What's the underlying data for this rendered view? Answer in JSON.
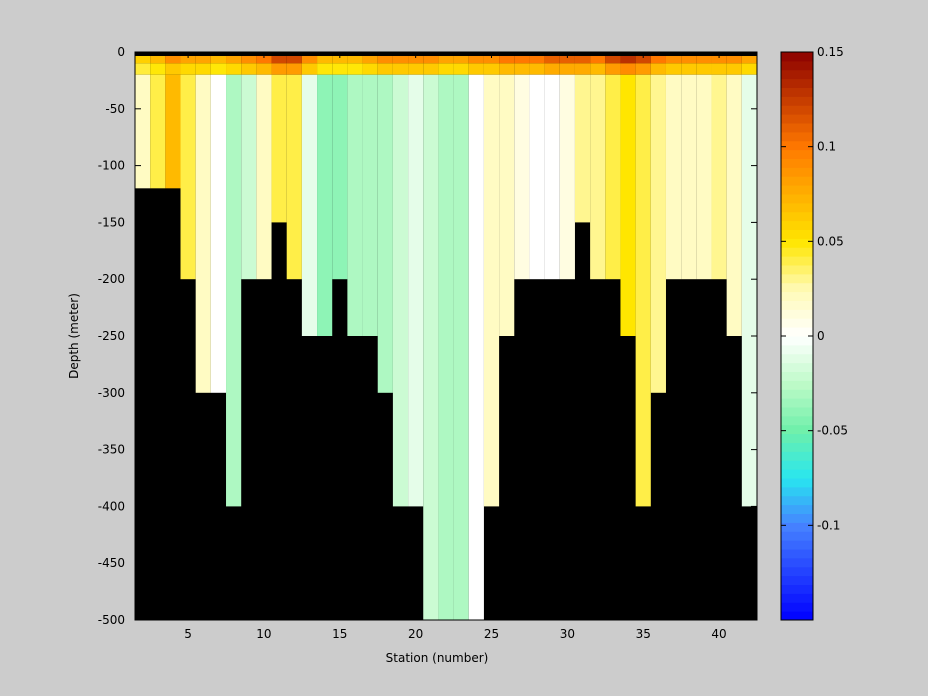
{
  "chart_data": {
    "type": "heatmap",
    "title": "",
    "xlabel": "Station (number)",
    "ylabel": "Depth (meter)",
    "xlim": [
      1.5,
      42.5
    ],
    "ylim": [
      -500,
      0
    ],
    "xticks": [
      5,
      10,
      15,
      20,
      25,
      30,
      35,
      40
    ],
    "yticks": [
      0,
      -50,
      -100,
      -150,
      -200,
      -250,
      -300,
      -350,
      -400,
      -450,
      -500
    ],
    "colorbar": {
      "clim": [
        -0.15,
        0.15
      ],
      "ticks": [
        0.15,
        0.1,
        0.05,
        0,
        -0.05,
        -0.1
      ],
      "tick_labels": [
        "0.15",
        "0.1",
        "0.05",
        "0",
        "-0.05",
        "-0.1"
      ],
      "colormap": "custom-blue-cyan-green-white-yellow-orange-red"
    },
    "stations": [
      2,
      3,
      4,
      5,
      6,
      7,
      8,
      9,
      10,
      11,
      12,
      13,
      14,
      15,
      16,
      17,
      18,
      19,
      20,
      21,
      22,
      23,
      24,
      25,
      26,
      27,
      28,
      29,
      30,
      31,
      32,
      33,
      34,
      35,
      36,
      37,
      38,
      39,
      40,
      41,
      42
    ],
    "bottom_depth": [
      -120,
      -120,
      -120,
      -200,
      -300,
      -300,
      -400,
      -200,
      -200,
      -150,
      -200,
      -250,
      -250,
      -200,
      -250,
      -250,
      -300,
      -400,
      -400,
      -500,
      -500,
      -500,
      -500,
      -400,
      -250,
      -200,
      -200,
      -200,
      -200,
      -150,
      -200,
      -200,
      -250,
      -400,
      -300,
      -200,
      -200,
      -200,
      -200,
      -250,
      -400
    ],
    "surface_layer": {
      "depth_range": [
        0,
        -10
      ],
      "values": [
        0.06,
        0.07,
        0.09,
        0.08,
        0.08,
        0.07,
        0.08,
        0.09,
        0.1,
        0.12,
        0.12,
        0.09,
        0.07,
        0.07,
        0.07,
        0.08,
        0.09,
        0.09,
        0.09,
        0.09,
        0.08,
        0.08,
        0.09,
        0.09,
        0.1,
        0.1,
        0.1,
        0.11,
        0.11,
        0.11,
        0.1,
        0.12,
        0.13,
        0.12,
        0.1,
        0.09,
        0.09,
        0.09,
        0.09,
        0.09,
        0.08
      ]
    },
    "interior_values": [
      0.02,
      0.04,
      0.07,
      0.04,
      0.02,
      0.0,
      -0.03,
      -0.02,
      0.02,
      0.04,
      0.04,
      -0.01,
      -0.04,
      -0.04,
      -0.03,
      -0.03,
      -0.03,
      -0.02,
      -0.01,
      -0.02,
      -0.03,
      -0.03,
      0.0,
      0.02,
      0.02,
      0.01,
      0.0,
      0.0,
      0.01,
      0.03,
      0.03,
      0.04,
      0.05,
      0.04,
      0.03,
      0.02,
      0.02,
      0.02,
      0.03,
      0.02,
      -0.01
    ]
  }
}
